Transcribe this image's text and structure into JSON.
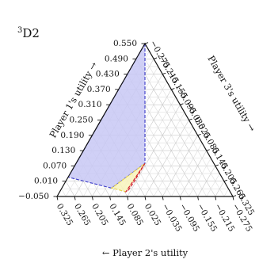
{
  "chart_data": {
    "type": "ternary",
    "title": "D2",
    "title_superscript": "3",
    "axes": {
      "left": {
        "label": "Player 1's utility",
        "arrow": "→",
        "ticks": [
          "0.550",
          "0.490",
          "0.430",
          "0.370",
          "0.310",
          "0.250",
          "0.190",
          "0.130",
          "0.070",
          "0.010",
          "−0.050"
        ]
      },
      "right": {
        "label": "Player 3's utility",
        "arrow": "→",
        "ticks": [
          "−0.275",
          "−0.215",
          "−0.155",
          "−0.095",
          "−0.035",
          "0.025",
          "0.085",
          "0.145",
          "0.205",
          "0.265",
          "0.325"
        ]
      },
      "bottom": {
        "label": "Player 2's utility",
        "arrow": "←",
        "ticks": [
          "0.325",
          "0.265",
          "0.205",
          "0.145",
          "0.085",
          "0.025",
          "−0.035",
          "−0.095",
          "−0.155",
          "−0.215",
          "−0.275"
        ]
      }
    },
    "grid": true,
    "regions": [
      {
        "fill": "#c8c8f4",
        "outline": "#3b3bc8",
        "vertices_a1": [
          [
            0.25,
            0.325,
            -0.275
          ],
          [
            0.25,
            -0.22,
            0.27
          ],
          [
            -0.012,
            0.13,
            0.182
          ],
          [
            -0.012,
            0.325,
            -0.013
          ]
        ]
      },
      {
        "fill": "#f8f3bc",
        "outline": "#e8d24a",
        "vertices_a1": [
          [
            0.25,
            -0.22,
            0.27
          ],
          [
            -0.012,
            -0.13,
            0.442
          ],
          [
            -0.012,
            0.13,
            0.182
          ]
        ]
      },
      {
        "fill": "#f6cdd2",
        "outline": "#d0202c",
        "vertices_a1": [
          [
            0.25,
            -0.22,
            0.27
          ],
          [
            0.09,
            -0.21,
            0.42
          ],
          [
            0.0,
            -0.18,
            0.48
          ],
          [
            -0.012,
            -0.13,
            0.442
          ]
        ]
      }
    ],
    "dashed_boundary": true
  }
}
